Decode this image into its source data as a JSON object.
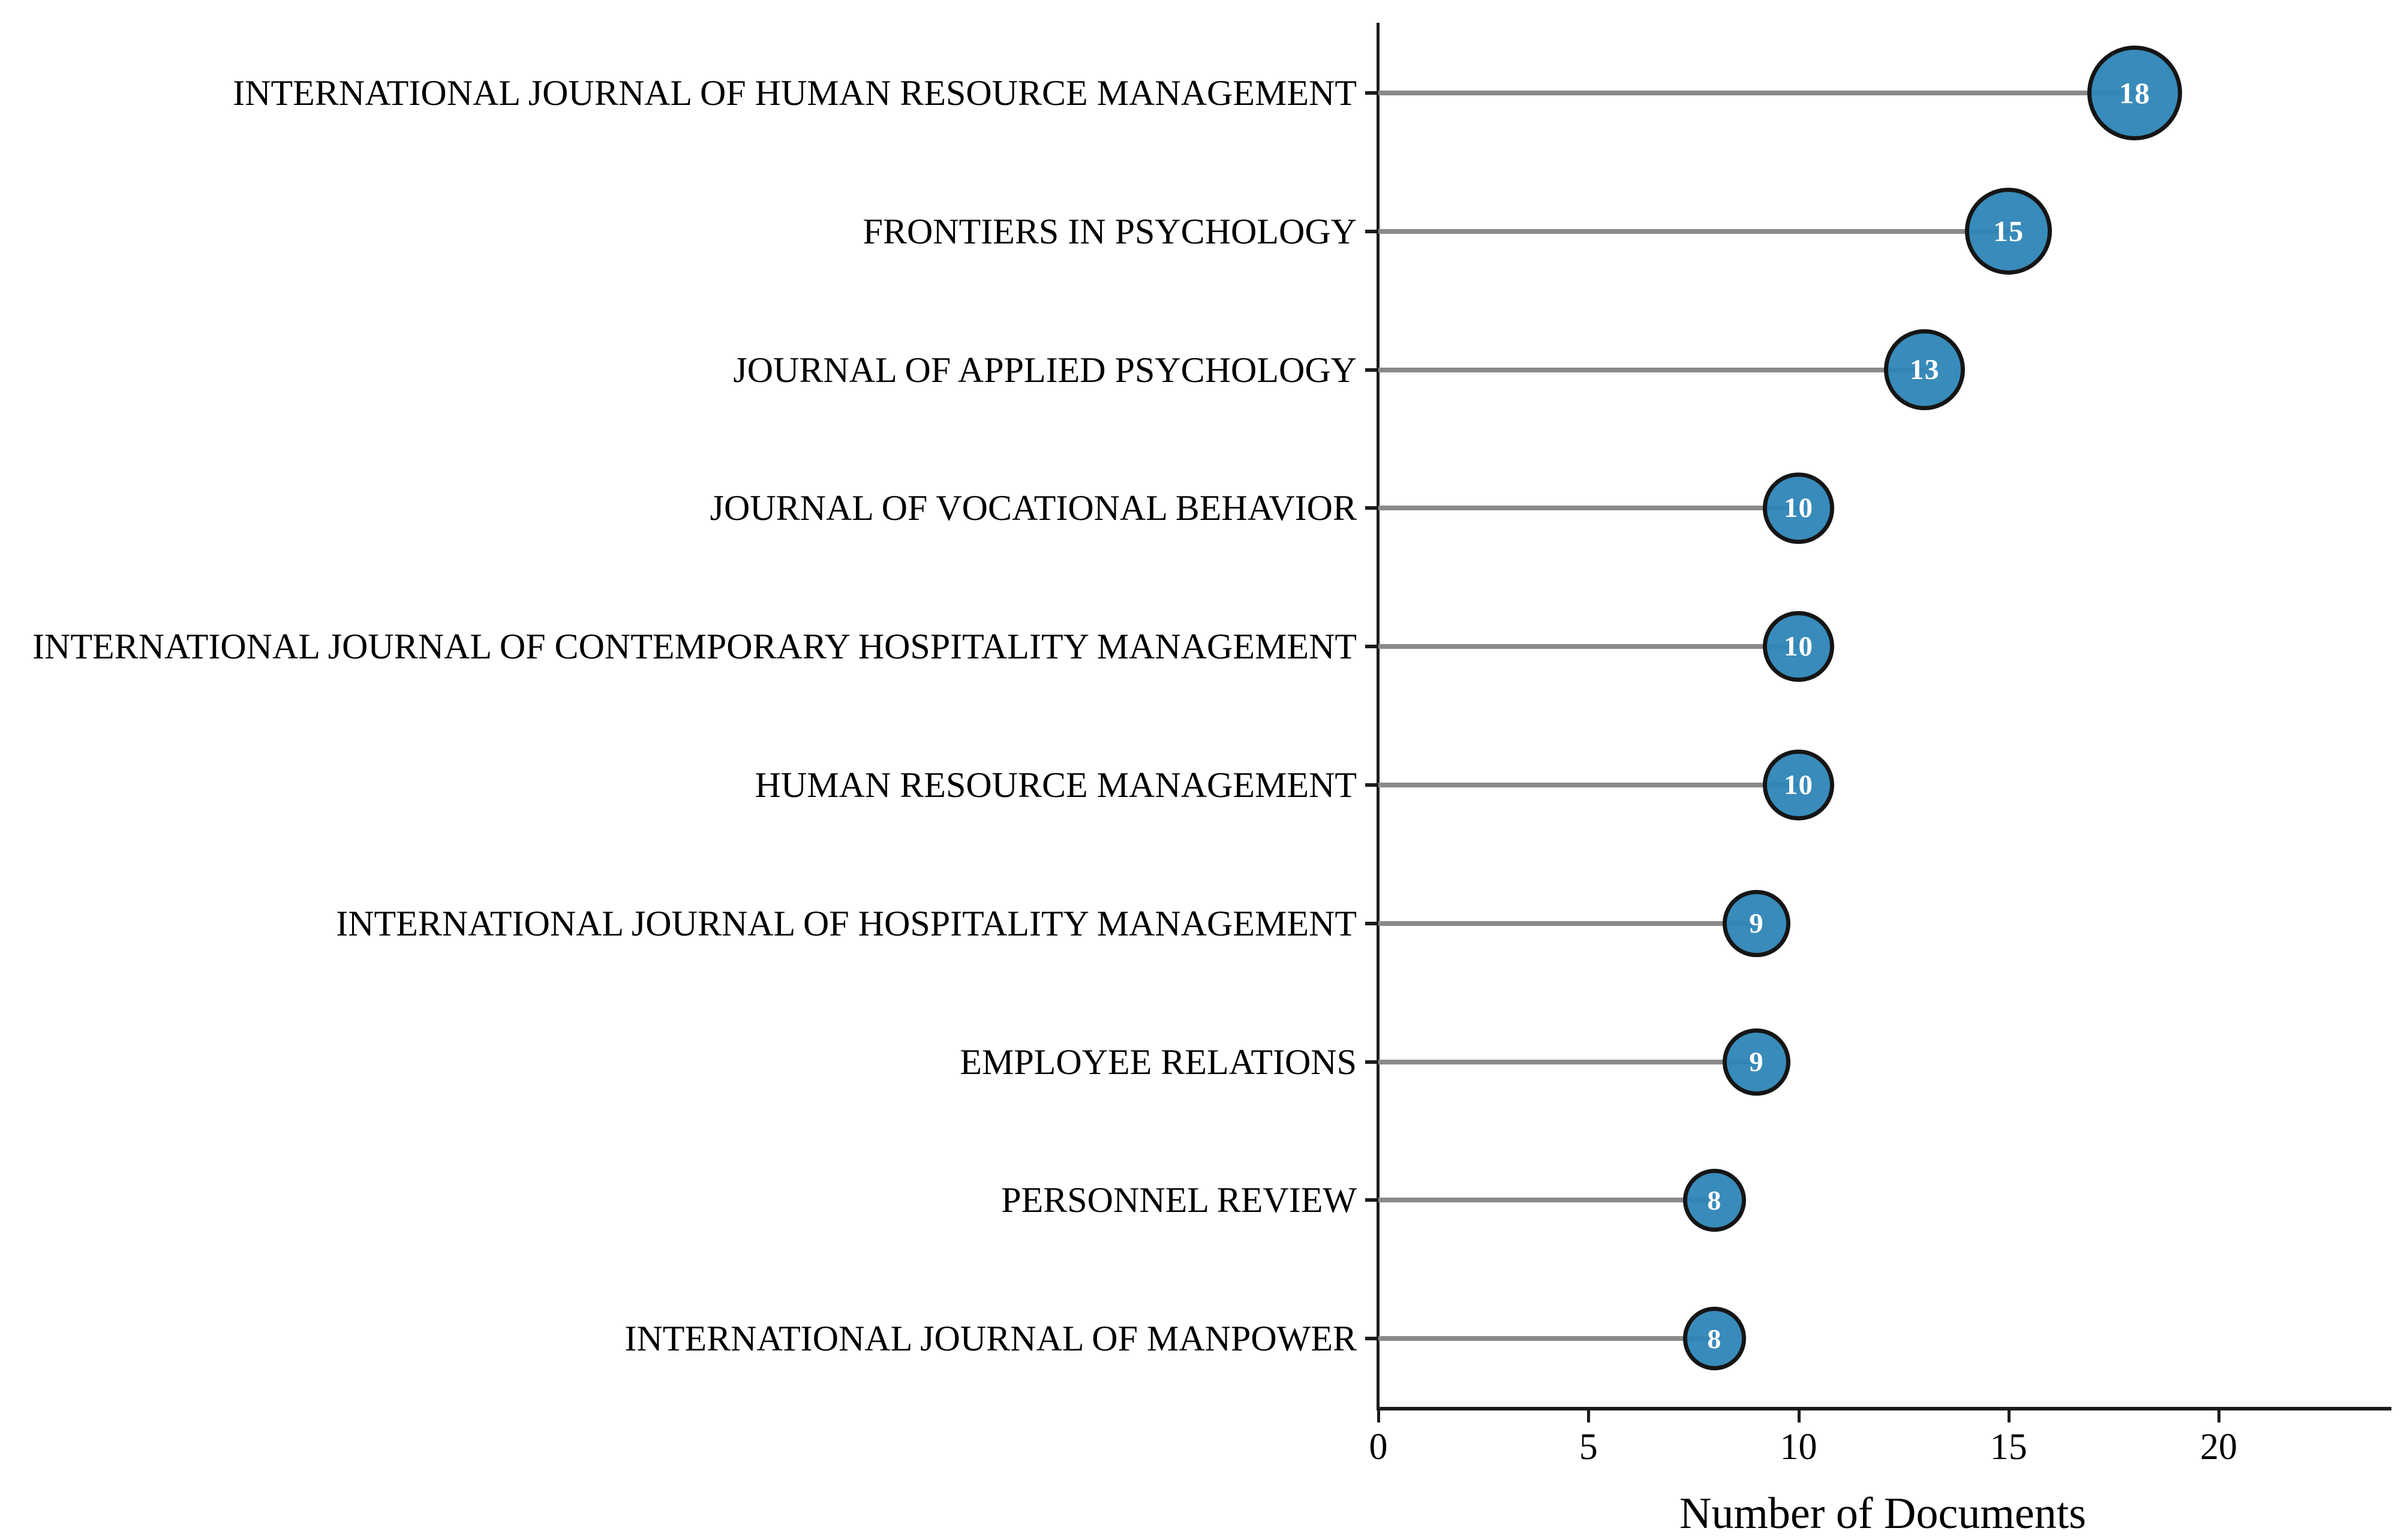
{
  "chart_data": {
    "type": "bar",
    "variant": "lollipop-bubble",
    "orientation": "horizontal",
    "categories": [
      "INTERNATIONAL JOURNAL OF HUMAN RESOURCE MANAGEMENT",
      "FRONTIERS IN PSYCHOLOGY",
      "JOURNAL OF APPLIED PSYCHOLOGY",
      "JOURNAL OF VOCATIONAL BEHAVIOR",
      "INTERNATIONAL JOURNAL OF CONTEMPORARY HOSPITALITY MANAGEMENT",
      "HUMAN RESOURCE MANAGEMENT",
      "INTERNATIONAL JOURNAL OF HOSPITALITY MANAGEMENT",
      "EMPLOYEE RELATIONS",
      "PERSONNEL REVIEW",
      "INTERNATIONAL JOURNAL OF MANPOWER"
    ],
    "values": [
      18,
      15,
      13,
      10,
      10,
      10,
      9,
      9,
      8,
      8
    ],
    "xlabel": "Number of Documents",
    "xticks": [
      0,
      5,
      10,
      15,
      20
    ],
    "xlim": [
      0,
      24
    ],
    "grid": false,
    "legend": null,
    "bubble_size_rule": "area proportional to value",
    "colors": {
      "bubble_fill": "#2d85b6",
      "bubble_stroke": "#151515",
      "bubble_text": "#ffffff",
      "stem": "#8a8a8a",
      "axis": "#1c1c1c",
      "label_text": "#000000"
    }
  }
}
